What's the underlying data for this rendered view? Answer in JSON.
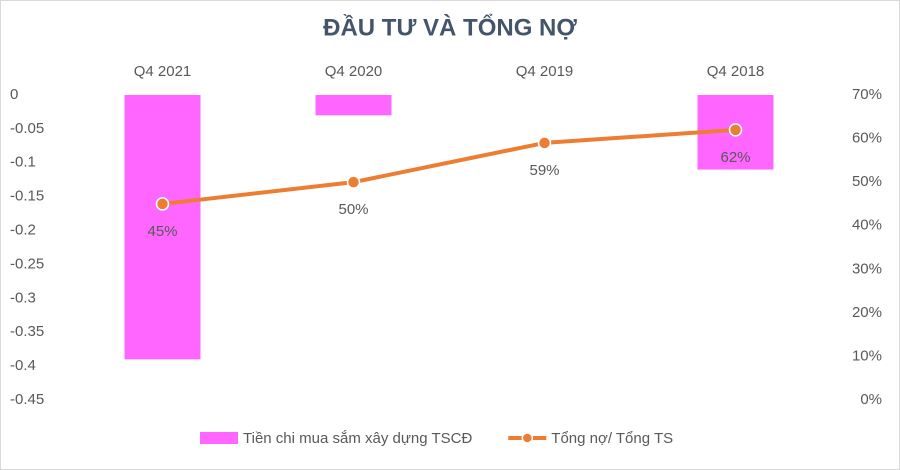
{
  "chart_data": {
    "type": "bar-line",
    "title": "ĐẦU TƯ VÀ TỔNG NỢ",
    "categories": [
      "Q4 2021",
      "Q4 2020",
      "Q4 2019",
      "Q4 2018"
    ],
    "series": [
      {
        "name": "Tiền chi mua sắm xây dựng TSCĐ",
        "type": "bar",
        "color": "#ff66ff",
        "values": [
          -0.39,
          -0.03,
          0,
          -0.11
        ]
      },
      {
        "name": "Tổng nợ/ Tổng TS",
        "type": "line",
        "axis": "y2",
        "color": "#ed7d31",
        "values": [
          45,
          50,
          59,
          62
        ],
        "value_labels": [
          "45%",
          "50%",
          "59%",
          "62%"
        ]
      }
    ],
    "ylim": [
      -0.45,
      0
    ],
    "yticks": [
      0,
      -0.05,
      -0.1,
      -0.15,
      -0.2,
      -0.25,
      -0.3,
      -0.35,
      -0.4,
      -0.45
    ],
    "y2lim": [
      0,
      70
    ],
    "y2ticks": [
      {
        "value": 70,
        "label": "70%"
      },
      {
        "value": 60,
        "label": "60%"
      },
      {
        "value": 50,
        "label": "50%"
      },
      {
        "value": 40,
        "label": "40%"
      },
      {
        "value": 30,
        "label": "30%"
      },
      {
        "value": 20,
        "label": "20%"
      },
      {
        "value": 10,
        "label": "10%"
      },
      {
        "value": 0,
        "label": "0%"
      }
    ],
    "legend": "bottom"
  }
}
